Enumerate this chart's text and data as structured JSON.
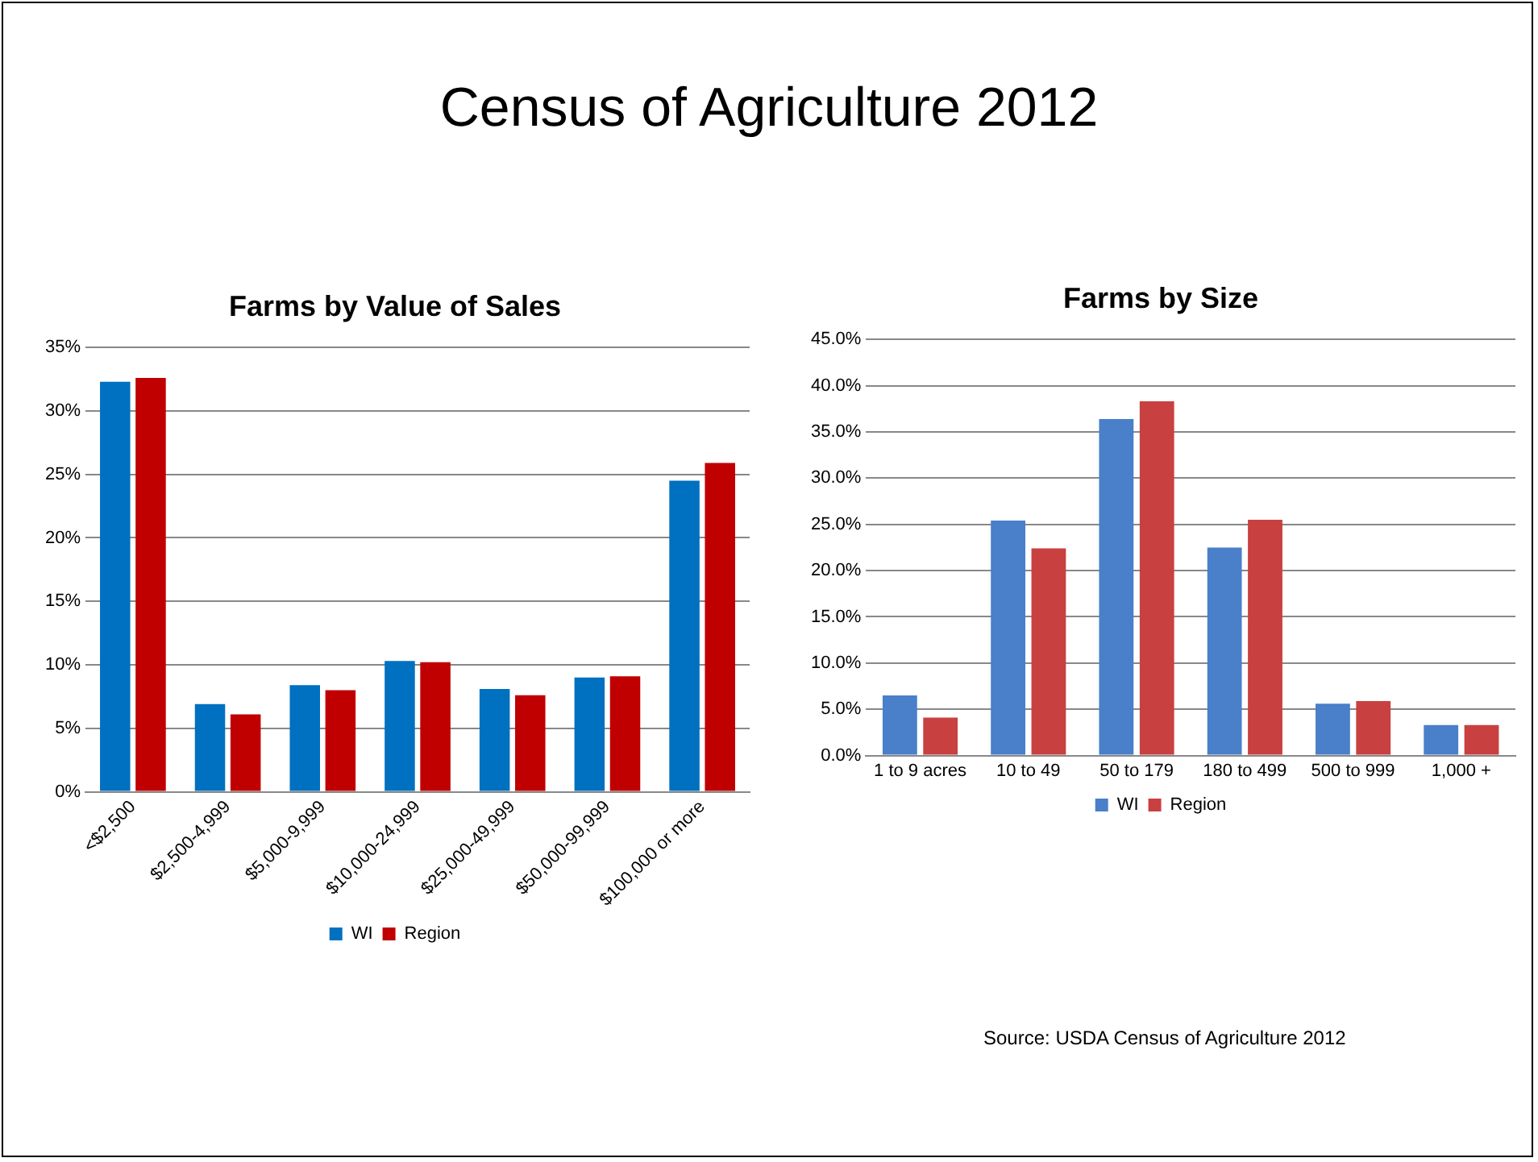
{
  "chart_data": [
    {
      "type": "bar",
      "title": "Farms by Value of Sales",
      "annotations": [
        "Census of Agriculture 2012"
      ],
      "categories": [
        "<$2,500",
        "$2,500-4,999",
        "$5,000-9,999",
        "$10,000-24,999",
        "$25,000-49,999",
        "$50,000-99,999",
        "$100,000 or more"
      ],
      "series": [
        {
          "name": "WI",
          "color": "#0070c0",
          "values": [
            32.3,
            6.9,
            8.4,
            10.3,
            8.1,
            9.0,
            24.5
          ]
        },
        {
          "name": "Region",
          "color": "#c00000",
          "values": [
            32.6,
            6.1,
            8.0,
            10.2,
            7.6,
            9.1,
            25.9
          ]
        }
      ],
      "ylim": [
        0,
        35
      ],
      "yticks": [
        {
          "value": 0,
          "label": "0%"
        },
        {
          "value": 5,
          "label": "5%"
        },
        {
          "value": 10,
          "label": "10%"
        },
        {
          "value": 15,
          "label": "15%"
        },
        {
          "value": 20,
          "label": "20%"
        },
        {
          "value": 25,
          "label": "25%"
        },
        {
          "value": 30,
          "label": "30%"
        },
        {
          "value": 35,
          "label": "35%"
        }
      ],
      "grid": "y",
      "legend": "bottom"
    },
    {
      "type": "bar",
      "title": "Farms by Size",
      "annotations": [
        "Source:  USDA Census of Agriculture 2012"
      ],
      "categories": [
        "1 to 9 acres",
        "10 to 49",
        "50 to 179",
        "180 to 499",
        "500 to 999",
        "1,000 +"
      ],
      "series": [
        {
          "name": "WI",
          "color": "#4a7fc9",
          "values": [
            6.5,
            25.4,
            36.4,
            22.5,
            5.6,
            3.3
          ]
        },
        {
          "name": "Region",
          "color": "#c94040",
          "values": [
            4.1,
            22.4,
            38.3,
            25.5,
            5.9,
            3.3
          ]
        }
      ],
      "ylim": [
        0,
        45
      ],
      "yticks": [
        {
          "value": 0,
          "label": "0.0%"
        },
        {
          "value": 5,
          "label": "5.0%"
        },
        {
          "value": 10,
          "label": "10.0%"
        },
        {
          "value": 15,
          "label": "15.0%"
        },
        {
          "value": 20,
          "label": "20.0%"
        },
        {
          "value": 25,
          "label": "25.0%"
        },
        {
          "value": 30,
          "label": "30.0%"
        },
        {
          "value": 35,
          "label": "35.0%"
        },
        {
          "value": 40,
          "label": "40.0%"
        },
        {
          "value": 45,
          "label": "45.0%"
        }
      ],
      "grid": "y",
      "legend": "bottom"
    }
  ]
}
